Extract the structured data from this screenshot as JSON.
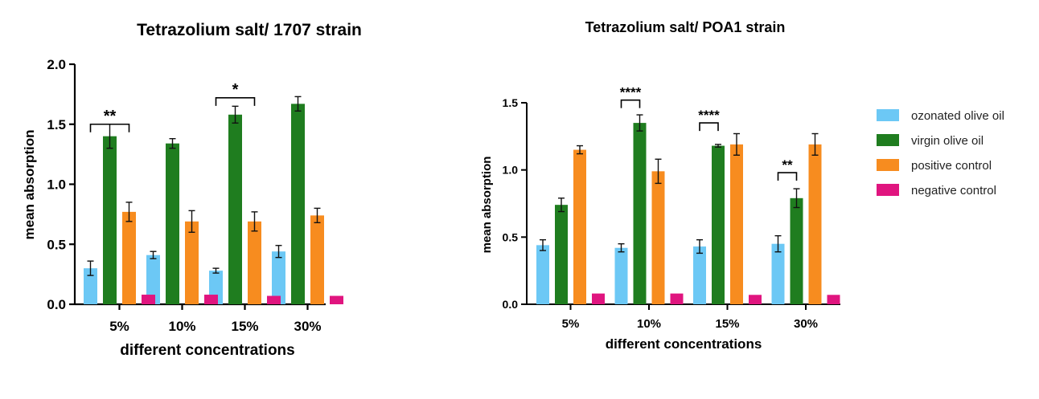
{
  "chart_data": [
    {
      "type": "bar",
      "title": "Tetrazolium salt/ 1707 strain",
      "xlabel": "different concentrations",
      "ylabel": "mean absorption",
      "categories": [
        "5%",
        "10%",
        "15%",
        "30%"
      ],
      "ylim": [
        0,
        2.0
      ],
      "yticks": [
        "0.0",
        "0.5",
        "1.0",
        "1.5",
        "2.0"
      ],
      "series": [
        {
          "name": "ozonated olive oil",
          "values": [
            0.3,
            0.41,
            0.28,
            0.44
          ],
          "errors": [
            0.06,
            0.03,
            0.02,
            0.05
          ]
        },
        {
          "name": "virgin olive oil",
          "values": [
            1.4,
            1.34,
            1.58,
            1.67
          ],
          "errors": [
            0.1,
            0.04,
            0.07,
            0.06
          ]
        },
        {
          "name": "positive control",
          "values": [
            0.77,
            0.69,
            0.69,
            0.74
          ],
          "errors": [
            0.08,
            0.09,
            0.08,
            0.06
          ]
        },
        {
          "name": "negative control",
          "values": [
            0.08,
            0.08,
            0.07,
            0.07
          ],
          "errors": [
            0.005,
            0.005,
            0.005,
            0.005
          ]
        }
      ],
      "significance": [
        {
          "category": "5%",
          "label": "**",
          "from_series": 0,
          "to_series": 2,
          "bracket_y": 1.5
        },
        {
          "category": "15%",
          "label": "*",
          "from_series": 0,
          "to_series": 2,
          "bracket_y": 1.72
        }
      ]
    },
    {
      "type": "bar",
      "title": "Tetrazolium salt/ POA1 strain",
      "xlabel": "different concentrations",
      "ylabel": "mean absorption",
      "categories": [
        "5%",
        "10%",
        "15%",
        "30%"
      ],
      "ylim": [
        0,
        1.5
      ],
      "yticks": [
        "0.0",
        "0.5",
        "1.0",
        "1.5"
      ],
      "series": [
        {
          "name": "ozonated olive oil",
          "values": [
            0.44,
            0.42,
            0.43,
            0.45
          ],
          "errors": [
            0.04,
            0.03,
            0.05,
            0.06
          ]
        },
        {
          "name": "virgin olive oil",
          "values": [
            0.74,
            1.35,
            1.18,
            0.79
          ],
          "errors": [
            0.05,
            0.06,
            0.01,
            0.07
          ]
        },
        {
          "name": "positive control",
          "values": [
            1.15,
            0.99,
            1.19,
            1.19
          ],
          "errors": [
            0.03,
            0.09,
            0.08,
            0.08
          ]
        },
        {
          "name": "negative control",
          "values": [
            0.08,
            0.08,
            0.07,
            0.07
          ],
          "errors": [
            0.005,
            0.005,
            0.005,
            0.005
          ]
        }
      ],
      "significance": [
        {
          "category": "10%",
          "label": "****",
          "from_series": 0,
          "to_series": 1,
          "bracket_y": 1.52
        },
        {
          "category": "15%",
          "label": "****",
          "from_series": 0,
          "to_series": 1,
          "bracket_y": 1.35
        },
        {
          "category": "30%",
          "label": "**",
          "from_series": 0,
          "to_series": 1,
          "bracket_y": 0.98
        }
      ]
    }
  ],
  "legend": {
    "placement": "right",
    "items": [
      {
        "label": "ozonated olive oil",
        "color": "#6cc8f5"
      },
      {
        "label": "virgin olive oil",
        "color": "#1f7d1f"
      },
      {
        "label": "positive control",
        "color": "#f78c1f"
      },
      {
        "label": "negative control",
        "color": "#e0157f"
      }
    ]
  }
}
